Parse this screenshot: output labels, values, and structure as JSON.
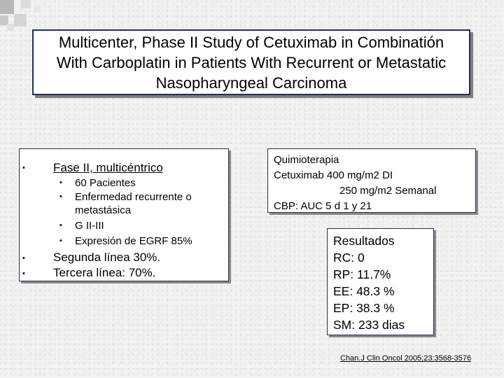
{
  "title": {
    "lines": [
      "Multicenter, Phase II Study of Cetuximab in Combinatión",
      "With Carboplatin in Patients With Recurrent or Metastatic",
      "Nasopharyngeal Carcinoma"
    ]
  },
  "left_panel": {
    "bullet_char": "•",
    "item1": "Fase II, multicéntrico",
    "sub_items": [
      "60 Pacientes",
      "Enfermedad recurrente o",
      "metastásica",
      "G II-III",
      "Expresión de EGRF 85%"
    ],
    "item2": "Segunda línea 30%.",
    "item3": "Tercera línea: 70%."
  },
  "therapy_panel": {
    "lines": [
      "Quimioterapia",
      "Cetuximab 400 mg/m2 DI",
      "250 mg/m2   Semanal",
      "CBP: AUC 5 d 1 y 21"
    ]
  },
  "results_panel": {
    "lines": [
      "Resultados",
      "RC: 0",
      "RP: 11.7%",
      "EE: 48.3 %",
      "EP: 38.3 %",
      "SM: 233 dias"
    ]
  },
  "citation": "Chan.J Clin Oncol 2005;23:3568-3576"
}
